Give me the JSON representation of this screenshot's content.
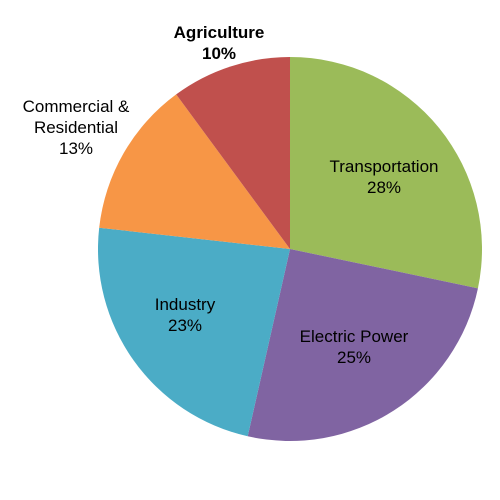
{
  "chart_data": {
    "type": "pie",
    "start_angle_deg": 0,
    "direction": "clockwise",
    "legend": "none",
    "slices": [
      {
        "category": "Transportation",
        "label_lines": [
          "Transportation",
          "28%"
        ],
        "value": 28,
        "color": "#9BBB59",
        "bold": false
      },
      {
        "category": "Electric Power",
        "label_lines": [
          "Electric Power",
          "25%"
        ],
        "value": 25,
        "color": "#8064A2",
        "bold": false
      },
      {
        "category": "Industry",
        "label_lines": [
          "Industry",
          "23%"
        ],
        "value": 23,
        "color": "#4BACC6",
        "bold": false
      },
      {
        "category": "Commercial & Residential",
        "label_lines": [
          "Commercial &",
          "Residential",
          "13%"
        ],
        "value": 13,
        "color": "#F79646",
        "bold": false
      },
      {
        "category": "Agriculture",
        "label_lines": [
          "Agriculture",
          "10%"
        ],
        "value": 10,
        "color": "#C0504D",
        "bold": true
      }
    ]
  }
}
